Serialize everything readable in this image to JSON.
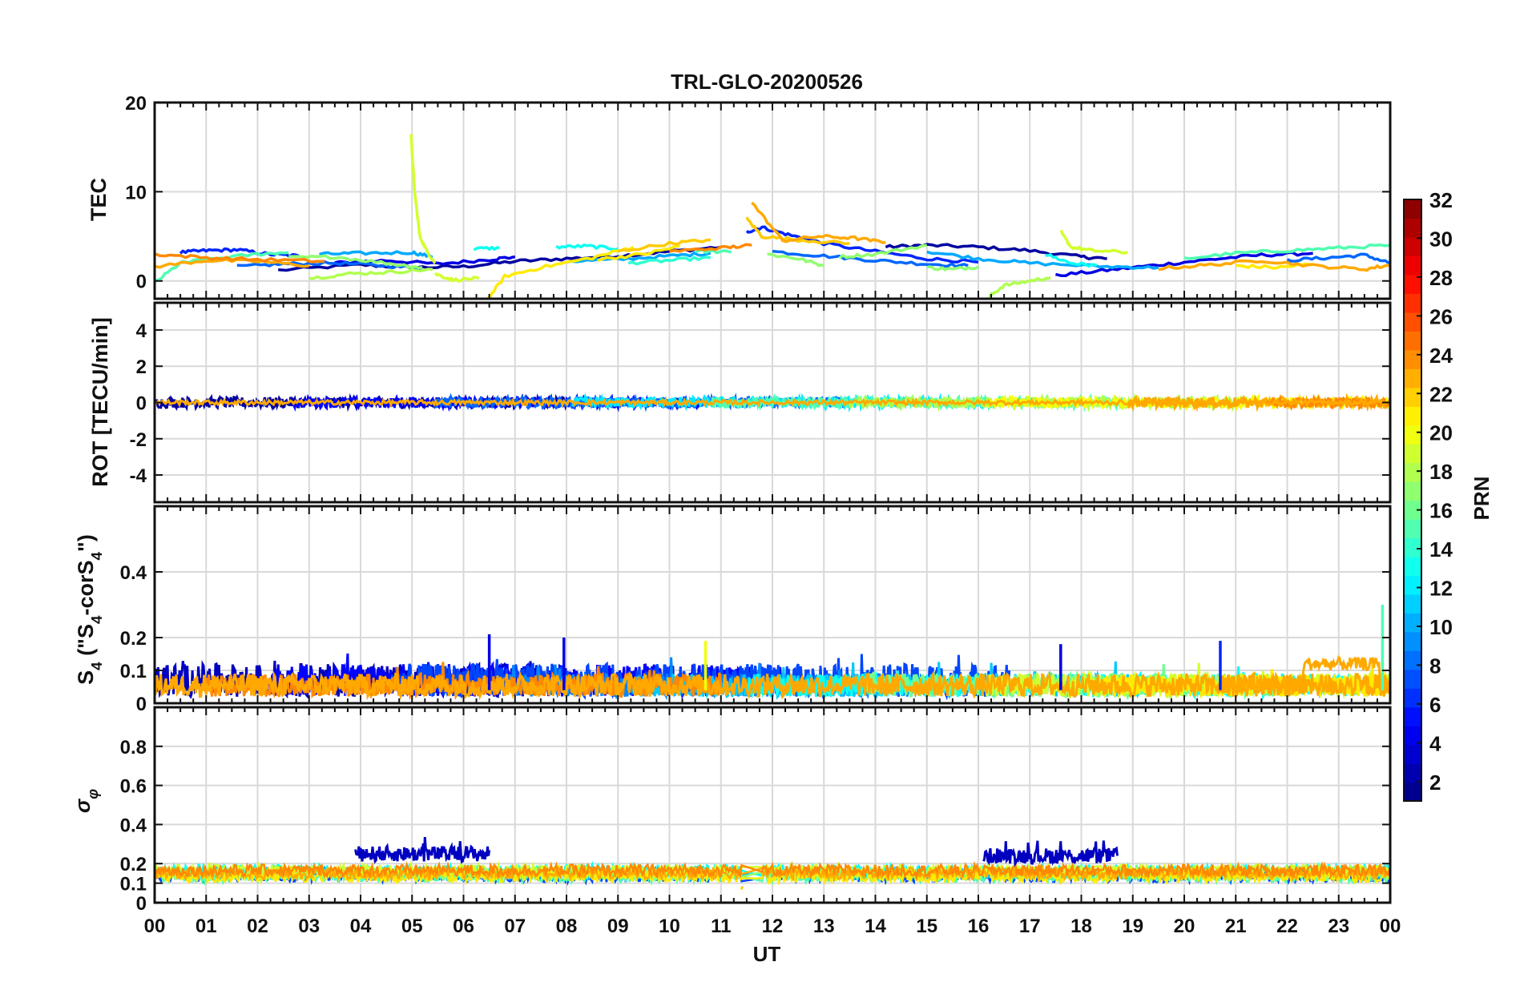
{
  "figure": {
    "title": "TRL-GLO-20200526",
    "xlabel": "UT",
    "x_tick_labels": [
      "00",
      "01",
      "02",
      "03",
      "04",
      "05",
      "06",
      "07",
      "08",
      "09",
      "10",
      "11",
      "12",
      "13",
      "14",
      "15",
      "16",
      "17",
      "18",
      "19",
      "20",
      "21",
      "22",
      "23",
      "00"
    ]
  },
  "chart_data": [
    {
      "id": "tec",
      "type": "line",
      "ylabel": "TEC",
      "ylim": [
        -2,
        20
      ],
      "xlim": [
        0,
        24
      ],
      "yticks": [
        0,
        10,
        20
      ],
      "ytick_labels": [
        "0",
        "10",
        "20"
      ],
      "grid": true,
      "series": [
        {
          "prn": 2,
          "x": [
            2.4,
            4.0,
            5.0,
            6.0,
            7.0,
            8.0,
            9.0,
            10.0,
            11.0
          ],
          "y": [
            1.2,
            1.8,
            1.5,
            1.6,
            2.2,
            2.5,
            2.8,
            3.3,
            3.8
          ]
        },
        {
          "prn": 2,
          "x": [
            14.2,
            15.0,
            16.0,
            17.0,
            18.0,
            18.5
          ],
          "y": [
            3.8,
            4.0,
            3.8,
            3.4,
            2.7,
            2.5
          ]
        },
        {
          "prn": 4,
          "x": [
            3.5,
            4.5,
            5.5,
            6.5,
            7.0
          ],
          "y": [
            2.0,
            2.3,
            1.9,
            2.4,
            2.7
          ]
        },
        {
          "prn": 4,
          "x": [
            17.5,
            18.5,
            19.5,
            20.5,
            21.5,
            22.5
          ],
          "y": [
            0.6,
            1.2,
            1.8,
            2.4,
            2.9,
            3.1
          ]
        },
        {
          "prn": 6,
          "x": [
            0.5,
            1.0,
            1.6,
            2.2,
            2.8
          ],
          "y": [
            3.2,
            3.4,
            3.5,
            3.0,
            2.8
          ]
        },
        {
          "prn": 6,
          "x": [
            11.5,
            11.8,
            12.3,
            13.0,
            14.0,
            15.0,
            16.0
          ],
          "y": [
            5.5,
            6.0,
            5.2,
            4.2,
            3.3,
            2.5,
            2.1
          ]
        },
        {
          "prn": 8,
          "x": [
            1.6,
            2.5,
            3.5,
            4.5,
            5.2
          ],
          "y": [
            1.6,
            1.9,
            2.0,
            1.7,
            1.4
          ]
        },
        {
          "prn": 8,
          "x": [
            12.0,
            13.0,
            14.0,
            15.0,
            15.8
          ],
          "y": [
            3.3,
            2.8,
            2.3,
            1.9,
            1.7
          ]
        },
        {
          "prn": 8,
          "x": [
            22.0,
            22.8,
            23.5,
            24.0
          ],
          "y": [
            2.3,
            2.6,
            2.9,
            2.0
          ]
        },
        {
          "prn": 10,
          "x": [
            3.2,
            4.0,
            5.0,
            5.4
          ],
          "y": [
            3.0,
            3.1,
            3.2,
            2.7
          ]
        },
        {
          "prn": 10,
          "x": [
            8.0,
            9.0,
            10.0,
            10.8
          ],
          "y": [
            2.2,
            2.4,
            2.8,
            3.1
          ]
        },
        {
          "prn": 10,
          "x": [
            15.0,
            16.0,
            17.0,
            18.5,
            19.5
          ],
          "y": [
            3.3,
            2.5,
            2.0,
            1.6,
            1.5
          ]
        },
        {
          "prn": 13,
          "x": [
            6.2,
            6.7
          ],
          "y": [
            3.6,
            3.7
          ]
        },
        {
          "prn": 13,
          "x": [
            7.8,
            8.4,
            9.0
          ],
          "y": [
            3.8,
            3.9,
            3.6
          ]
        },
        {
          "prn": 13,
          "x": [
            17.3,
            17.8,
            18.3
          ],
          "y": [
            3.0,
            2.0,
            1.7
          ]
        },
        {
          "prn": 14,
          "x": [
            9.2,
            10.0,
            10.8
          ],
          "y": [
            2.0,
            2.3,
            2.6
          ]
        },
        {
          "prn": 15,
          "x": [
            0.0,
            0.5,
            1.0,
            2.0,
            2.6
          ],
          "y": [
            -0.2,
            2.0,
            2.4,
            3.0,
            3.2
          ]
        },
        {
          "prn": 15,
          "x": [
            10.5,
            11.2
          ],
          "y": [
            3.4,
            3.2
          ]
        },
        {
          "prn": 15,
          "x": [
            20.0,
            21.0,
            22.0,
            23.0,
            24.0
          ],
          "y": [
            2.5,
            3.1,
            3.4,
            3.7,
            4.0
          ]
        },
        {
          "prn": 17,
          "x": [
            2.6,
            3.5,
            4.5,
            5.2
          ],
          "y": [
            2.6,
            2.7,
            2.0,
            1.5
          ]
        },
        {
          "prn": 17,
          "x": [
            11.9,
            12.5,
            13.0
          ],
          "y": [
            3.0,
            2.5,
            1.7
          ]
        },
        {
          "prn": 17,
          "x": [
            13.3,
            14.0,
            15.0
          ],
          "y": [
            2.7,
            3.0,
            4.0
          ]
        },
        {
          "prn": 17,
          "x": [
            15.0,
            15.5,
            16.0
          ],
          "y": [
            1.5,
            1.3,
            1.6
          ]
        },
        {
          "prn": 18,
          "x": [
            3.0,
            3.8,
            4.6,
            5.4
          ],
          "y": [
            0.3,
            0.8,
            1.0,
            1.3
          ]
        },
        {
          "prn": 18,
          "x": [
            16.2,
            16.5,
            17.0,
            17.4
          ],
          "y": [
            -1.8,
            -0.5,
            0.0,
            0.4
          ]
        },
        {
          "prn": 19,
          "x": [
            4.98,
            5.05,
            5.15,
            5.3,
            5.45
          ],
          "y": [
            16.3,
            10.0,
            5.0,
            3.2,
            2.0
          ]
        },
        {
          "prn": 19,
          "x": [
            5.45,
            5.8,
            6.3
          ],
          "y": [
            0.8,
            0.1,
            0.3
          ]
        },
        {
          "prn": 19,
          "x": [
            17.6,
            17.8,
            18.2,
            18.9
          ],
          "y": [
            5.5,
            3.8,
            3.4,
            3.2
          ]
        },
        {
          "prn": 21,
          "x": [
            6.45,
            6.8,
            7.5,
            8.5,
            9.3
          ],
          "y": [
            -2.2,
            0.5,
            1.5,
            2.6,
            3.8
          ]
        },
        {
          "prn": 21,
          "x": [
            8.6,
            9.5,
            10.2
          ],
          "y": [
            2.4,
            3.0,
            3.9
          ]
        },
        {
          "prn": 21,
          "x": [
            21.0,
            21.8,
            22.5
          ],
          "y": [
            1.7,
            1.5,
            1.9
          ]
        },
        {
          "prn": 22,
          "x": [
            9.0,
            10.0,
            10.8
          ],
          "y": [
            3.3,
            4.2,
            4.6
          ]
        },
        {
          "prn": 22,
          "x": [
            11.5,
            11.8,
            12.5,
            13.5
          ],
          "y": [
            7.0,
            5.0,
            4.6,
            4.2
          ]
        },
        {
          "prn": 23,
          "x": [
            0.0,
            1.0,
            2.0,
            3.0
          ],
          "y": [
            1.6,
            2.3,
            2.2,
            1.7
          ]
        },
        {
          "prn": 23,
          "x": [
            11.6,
            12.2,
            12.9,
            13.6,
            14.2
          ],
          "y": [
            8.8,
            4.5,
            5.0,
            4.8,
            4.3
          ]
        },
        {
          "prn": 23,
          "x": [
            19.5,
            20.5,
            21.5,
            22.5,
            23.5,
            24.0
          ],
          "y": [
            1.4,
            1.8,
            2.3,
            1.7,
            1.3,
            1.8
          ]
        },
        {
          "prn": 24,
          "x": [
            0.0,
            1.0,
            2.0,
            3.3
          ],
          "y": [
            3.0,
            2.6,
            2.4,
            2.2
          ]
        },
        {
          "prn": 24,
          "x": [
            10.0,
            11.0,
            11.6
          ],
          "y": [
            3.3,
            3.7,
            4.0
          ]
        }
      ]
    },
    {
      "id": "rot",
      "type": "line",
      "ylabel": "ROT [TECU/min]",
      "ylim": [
        -5.5,
        5.5
      ],
      "xlim": [
        0,
        24
      ],
      "yticks": [
        -4,
        -2,
        0,
        2,
        4
      ],
      "ytick_labels": [
        "-4",
        "-2",
        "0",
        "2",
        "4"
      ],
      "grid": true,
      "approx_range": [
        -0.3,
        0.3
      ],
      "series_description": "All PRNs fluctuate near 0 TECU/min"
    },
    {
      "id": "s4",
      "type": "line",
      "ylabel_html": "S<tspan baseline-shift=\"sub\" font-size=\"70%\">4</tspan> (\"S<tspan baseline-shift=\"sub\" font-size=\"70%\">4</tspan>-corS<tspan baseline-shift=\"sub\" font-size=\"70%\">4</tspan>\")",
      "ylabel": "S4 (\"S4-corS4\")",
      "ylim": [
        0,
        0.6
      ],
      "xlim": [
        0,
        24
      ],
      "yticks": [
        0,
        0.1,
        0.2,
        0.4
      ],
      "ytick_labels": [
        "0",
        "0.1",
        "0.2",
        "0.4"
      ],
      "grid": true,
      "typical_level": 0.05,
      "peaks": [
        {
          "x": 6.5,
          "y": 0.21,
          "prn": 4
        },
        {
          "x": 7.95,
          "y": 0.2,
          "prn": 4
        },
        {
          "x": 10.7,
          "y": 0.19,
          "prn": 20
        },
        {
          "x": 17.6,
          "y": 0.18,
          "prn": 4
        },
        {
          "x": 20.7,
          "y": 0.19,
          "prn": 6
        },
        {
          "x": 23.85,
          "y": 0.3,
          "prn": 15
        }
      ]
    },
    {
      "id": "sigma_phi",
      "type": "line",
      "ylabel": "σφ",
      "ylim": [
        0,
        1.0
      ],
      "xlim": [
        0,
        24
      ],
      "yticks": [
        0,
        0.1,
        0.2,
        0.4,
        0.6,
        0.8
      ],
      "ytick_labels": [
        "0",
        "0.1",
        "0.2",
        "0.4",
        "0.6",
        "0.8"
      ],
      "grid": true,
      "typical_level": 0.15,
      "events": [
        {
          "x_range": [
            3.9,
            6.5
          ],
          "level": 0.25,
          "peak": 0.35,
          "prn": 3
        },
        {
          "x_range": [
            16.1,
            18.7
          ],
          "level": 0.24,
          "peak": 0.32,
          "prn": 3
        },
        {
          "x_range": [
            11.4,
            11.8
          ],
          "level": 0.08,
          "prn": 22
        }
      ]
    }
  ],
  "colorbar": {
    "label": "PRN",
    "range": [
      1,
      32
    ],
    "tick_values": [
      2,
      4,
      6,
      8,
      10,
      12,
      14,
      16,
      18,
      20,
      22,
      24,
      26,
      28,
      30,
      32
    ],
    "tick_labels": [
      "2",
      "4",
      "6",
      "8",
      "10",
      "12",
      "14",
      "16",
      "18",
      "20",
      "22",
      "24",
      "26",
      "28",
      "30",
      "32"
    ]
  }
}
